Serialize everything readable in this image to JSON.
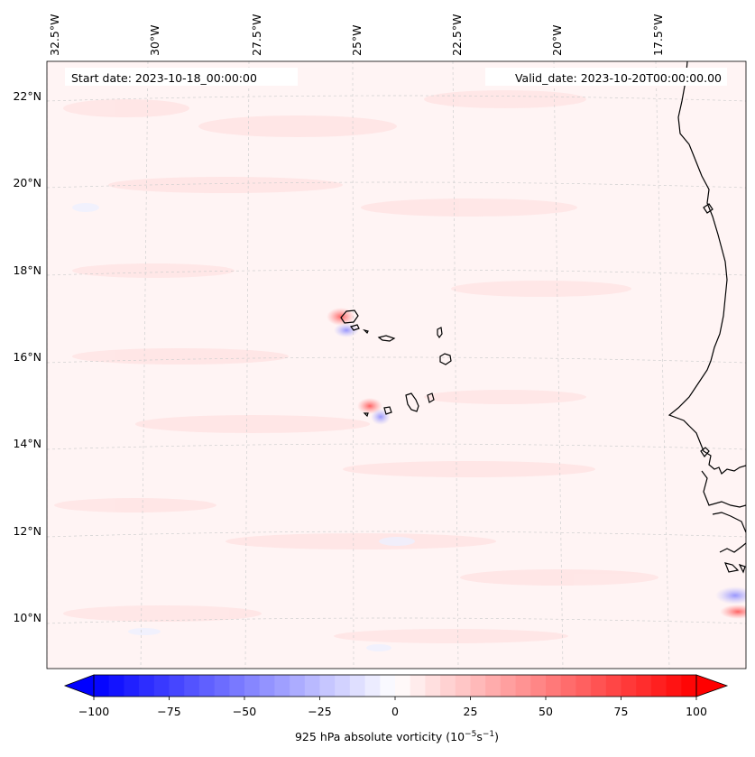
{
  "header": {
    "start_date": "Start date: 2023-10-18_00:00:00",
    "valid_date": "Valid_date: 2023-10-20T00:00:00.00"
  },
  "axes": {
    "lon_labels": [
      "32.5°W",
      "30°W",
      "27.5°W",
      "25°W",
      "22.5°W",
      "20°W",
      "17.5°W"
    ],
    "lat_labels": [
      "22°N",
      "20°N",
      "18°N",
      "16°N",
      "14°N",
      "12°N",
      "10°N"
    ],
    "gridlines": true
  },
  "colorbar": {
    "label_text": "925 hPa absolute vorticity (10",
    "label_exp1": "−5",
    "label_mid": "s",
    "label_exp2": "−1",
    "label_end": ")",
    "ticks": [
      "−100",
      "−75",
      "−50",
      "−25",
      "0",
      "25",
      "50",
      "75",
      "100"
    ],
    "range": [
      -100,
      100
    ],
    "extend": "both",
    "colormap": "bwr"
  },
  "colors": {
    "negative": "#0000ff",
    "neutral": "#ffffff",
    "positive": "#ff0000",
    "field_tint": "#fff5f5",
    "coastline": "#000000"
  }
}
